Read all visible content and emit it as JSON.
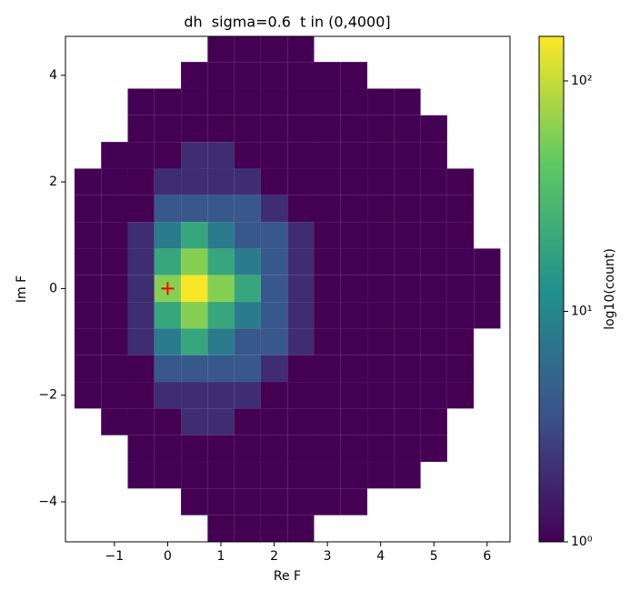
{
  "chart_data": {
    "type": "hexbin",
    "title": "dh  sigma=0.6  t in (0,4000]",
    "x_label": "Re F",
    "y_label": "Im F",
    "colorbar_label": "log10(count)",
    "colormap": "viridis",
    "color_scale": "log",
    "xlim": [
      -1.92,
      6.43
    ],
    "ylim": [
      -4.75,
      4.73
    ],
    "xticks": [
      {
        "value": -1,
        "label": "−1"
      },
      0,
      1,
      2,
      3,
      4,
      5,
      6
    ],
    "yticks": [
      {
        "value": -4,
        "label": "−4"
      },
      {
        "value": -2,
        "label": "−2"
      },
      0,
      2,
      4
    ],
    "clim": [
      1,
      156
    ],
    "cticks": [
      {
        "value": 1,
        "label": "10⁰"
      },
      {
        "value": 10,
        "label": "10¹"
      },
      {
        "value": 100,
        "label": "10²"
      }
    ],
    "marker": {
      "x": 0,
      "y": 0,
      "color": "#ff0000"
    },
    "x_centers": [
      -1.5,
      -1,
      -0.5,
      0,
      0.5,
      1,
      1.5,
      2,
      2.5,
      3,
      3.5,
      4,
      4.5,
      5,
      5.5,
      6
    ],
    "y_centers": [
      4.5,
      4,
      3.5,
      3,
      2.5,
      2,
      1.5,
      1,
      0.5,
      0,
      -0.5,
      -1,
      -1.5,
      -2,
      -2.5,
      -3,
      -3.5,
      -4,
      -4.5
    ],
    "counts": [
      [
        null,
        null,
        null,
        null,
        null,
        1,
        1,
        1,
        1,
        null,
        null,
        null,
        null,
        null,
        null,
        null
      ],
      [
        null,
        null,
        null,
        null,
        1,
        1,
        1,
        1,
        1,
        1,
        1,
        null,
        null,
        null,
        null,
        null
      ],
      [
        null,
        null,
        1,
        1,
        1,
        1,
        1,
        1,
        1,
        1,
        1,
        1,
        1,
        null,
        null,
        null
      ],
      [
        null,
        null,
        1,
        1,
        1,
        1,
        1,
        1,
        1,
        1,
        1,
        1,
        1,
        1,
        null,
        null
      ],
      [
        null,
        1,
        1,
        1,
        2,
        2,
        1,
        1,
        1,
        1,
        1,
        1,
        1,
        1,
        null,
        null
      ],
      [
        1,
        1,
        1,
        2,
        2,
        2,
        2,
        1,
        1,
        1,
        1,
        1,
        1,
        1,
        1,
        null
      ],
      [
        1,
        1,
        1,
        4,
        4,
        4,
        4,
        2,
        1,
        1,
        1,
        1,
        1,
        1,
        1,
        null
      ],
      [
        1,
        1,
        2,
        8,
        20,
        8,
        4,
        4,
        2,
        1,
        1,
        1,
        1,
        1,
        1,
        null
      ],
      [
        1,
        1,
        2,
        20,
        60,
        20,
        8,
        4,
        2,
        1,
        1,
        1,
        1,
        1,
        1,
        1
      ],
      [
        1,
        1,
        2,
        60,
        150,
        60,
        20,
        4,
        2,
        1,
        1,
        1,
        1,
        1,
        1,
        1
      ],
      [
        1,
        1,
        2,
        20,
        60,
        20,
        8,
        4,
        2,
        1,
        1,
        1,
        1,
        1,
        1,
        1
      ],
      [
        1,
        1,
        2,
        8,
        20,
        8,
        4,
        4,
        2,
        1,
        1,
        1,
        1,
        1,
        1,
        null
      ],
      [
        1,
        1,
        1,
        4,
        4,
        4,
        4,
        2,
        1,
        1,
        1,
        1,
        1,
        1,
        1,
        null
      ],
      [
        1,
        1,
        1,
        2,
        2,
        2,
        2,
        1,
        1,
        1,
        1,
        1,
        1,
        1,
        1,
        null
      ],
      [
        null,
        1,
        1,
        1,
        2,
        2,
        1,
        1,
        1,
        1,
        1,
        1,
        1,
        1,
        null,
        null
      ],
      [
        null,
        null,
        1,
        1,
        1,
        1,
        1,
        1,
        1,
        1,
        1,
        1,
        1,
        1,
        null,
        null
      ],
      [
        null,
        null,
        1,
        1,
        1,
        1,
        1,
        1,
        1,
        1,
        1,
        1,
        1,
        null,
        null,
        null
      ],
      [
        null,
        null,
        null,
        null,
        1,
        1,
        1,
        1,
        1,
        1,
        1,
        null,
        null,
        null,
        null,
        null
      ],
      [
        null,
        null,
        null,
        null,
        null,
        1,
        1,
        1,
        1,
        null,
        null,
        null,
        null,
        null,
        null,
        null
      ]
    ]
  }
}
